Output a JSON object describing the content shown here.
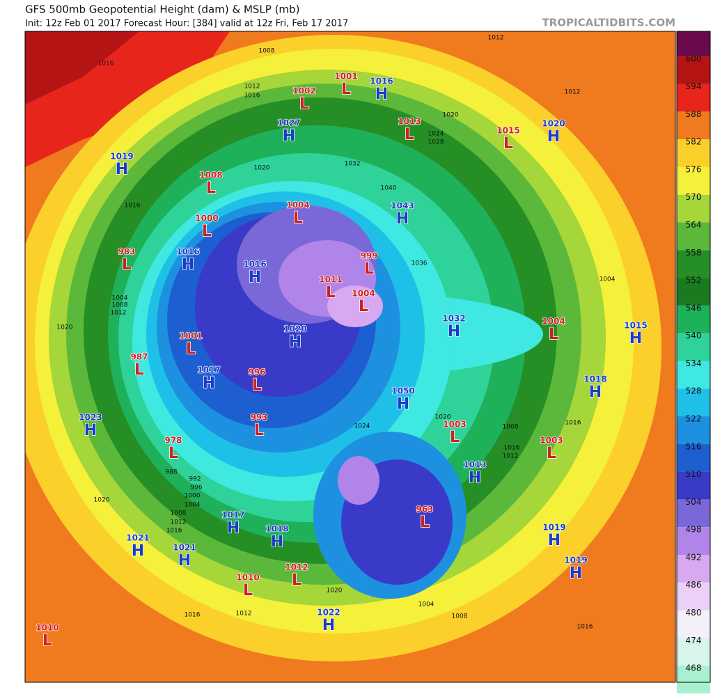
{
  "header": {
    "title": "GFS 500mb Geopotential Height (dam) & MSLP (mb)",
    "subtitle": "Init: 12z Feb 01 2017   Forecast Hour: [384]   valid at 12z Fri, Feb 17 2017",
    "site": "TROPICALTIDBITS.COM"
  },
  "colorbar": {
    "ticks": [
      600,
      594,
      588,
      582,
      576,
      570,
      564,
      558,
      552,
      546,
      540,
      534,
      528,
      522,
      516,
      510,
      504,
      498,
      492,
      486,
      480,
      474,
      468
    ],
    "colors": [
      "#b51414",
      "#e8251b",
      "#f07a1e",
      "#fbd02a",
      "#f5f03a",
      "#a5d63a",
      "#5cb83a",
      "#258f25",
      "#1a7a20",
      "#1fb05a",
      "#2fd39a",
      "#3fe8e0",
      "#1fc0e8",
      "#1e90e0",
      "#1d5fd0",
      "#3a3ac8",
      "#7a68d8",
      "#b084e8",
      "#d8a8f0",
      "#ecd0f8",
      "#f4f0fa",
      "#d8f5ec",
      "#a8f0d0"
    ],
    "top_color": "#6b0a4a"
  },
  "centers": [
    {
      "kind": "H",
      "pressure": 1019
    },
    {
      "kind": "L",
      "pressure": 1002
    },
    {
      "kind": "L",
      "pressure": 1001
    },
    {
      "kind": "H",
      "pressure": 1016
    },
    {
      "kind": "H",
      "pressure": 1027
    },
    {
      "kind": "L",
      "pressure": 1013
    },
    {
      "kind": "L",
      "pressure": 1015
    },
    {
      "kind": "H",
      "pressure": 1020
    },
    {
      "kind": "L",
      "pressure": 1008
    },
    {
      "kind": "L",
      "pressure": 1004
    },
    {
      "kind": "H",
      "pressure": 1043
    },
    {
      "kind": "L",
      "pressure": 1000
    },
    {
      "kind": "L",
      "pressure": 983
    },
    {
      "kind": "H",
      "pressure": 1016
    },
    {
      "kind": "H",
      "pressure": 1016
    },
    {
      "kind": "L",
      "pressure": 999
    },
    {
      "kind": "L",
      "pressure": 1011
    },
    {
      "kind": "L",
      "pressure": 1004
    },
    {
      "kind": "H",
      "pressure": 1032
    },
    {
      "kind": "L",
      "pressure": 1004
    },
    {
      "kind": "H",
      "pressure": 1015
    },
    {
      "kind": "L",
      "pressure": 1001
    },
    {
      "kind": "L",
      "pressure": 987
    },
    {
      "kind": "H",
      "pressure": 1017
    },
    {
      "kind": "L",
      "pressure": 996
    },
    {
      "kind": "H",
      "pressure": 1020
    },
    {
      "kind": "H",
      "pressure": 1050
    },
    {
      "kind": "H",
      "pressure": 1018
    },
    {
      "kind": "H",
      "pressure": 1023
    },
    {
      "kind": "L",
      "pressure": 993
    },
    {
      "kind": "L",
      "pressure": 978
    },
    {
      "kind": "L",
      "pressure": 1003
    },
    {
      "kind": "L",
      "pressure": 1003
    },
    {
      "kind": "H",
      "pressure": 1013
    },
    {
      "kind": "L",
      "pressure": 963
    },
    {
      "kind": "H",
      "pressure": 1019
    },
    {
      "kind": "H",
      "pressure": 1021
    },
    {
      "kind": "H",
      "pressure": 1021
    },
    {
      "kind": "H",
      "pressure": 1017
    },
    {
      "kind": "H",
      "pressure": 1018
    },
    {
      "kind": "L",
      "pressure": 1012
    },
    {
      "kind": "L",
      "pressure": 1010
    },
    {
      "kind": "H",
      "pressure": 1019
    },
    {
      "kind": "H",
      "pressure": 1022
    },
    {
      "kind": "L",
      "pressure": 1010
    }
  ],
  "isobar_labels": [
    1012,
    1016,
    1008,
    1012,
    1016,
    1012,
    1020,
    1024,
    1028,
    1032,
    1036,
    1040,
    1020,
    1004,
    1008,
    1012,
    1020,
    1016,
    988,
    992,
    996,
    1000,
    1004,
    1008,
    1012,
    1016,
    1020,
    1024,
    1016,
    1020,
    1016,
    1012,
    1008,
    1004,
    1008,
    1016,
    1016,
    1012,
    1020,
    1004
  ]
}
